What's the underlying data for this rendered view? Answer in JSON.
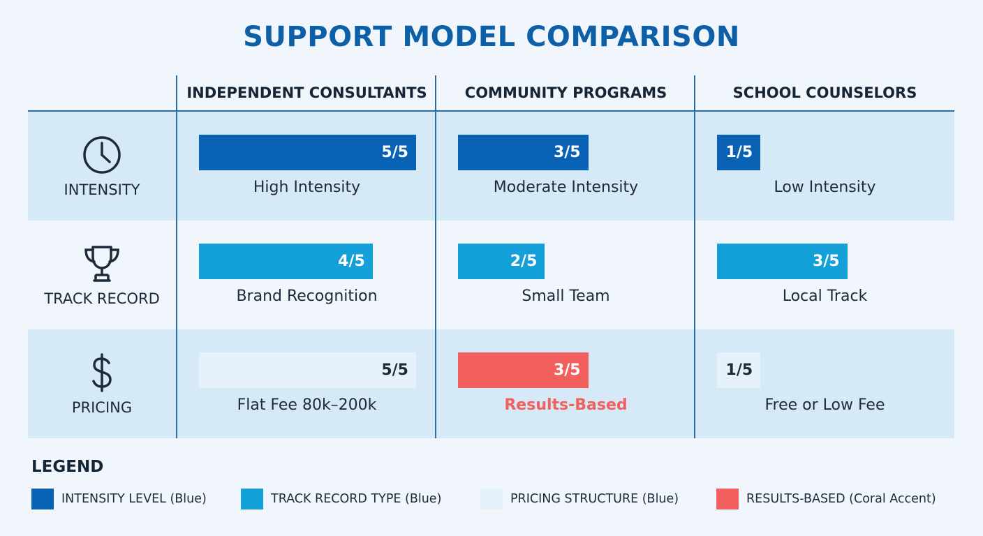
{
  "title": "SUPPORT MODEL COMPARISON",
  "columns": [
    "INDEPENDENT CONSULTANTS",
    "COMMUNITY PROGRAMS",
    "SCHOOL COUNSELORS"
  ],
  "rows": [
    {
      "label": "INTENSITY",
      "icon": "clock-icon",
      "cells": [
        {
          "score": "5/5",
          "label": "High Intensity"
        },
        {
          "score": "3/5",
          "label": "Moderate Intensity"
        },
        {
          "score": "1/5",
          "label": "Low Intensity"
        }
      ]
    },
    {
      "label": "TRACK RECORD",
      "icon": "trophy-icon",
      "cells": [
        {
          "score": "4/5",
          "label": "Brand Recognition"
        },
        {
          "score": "2/5",
          "label": "Small Team"
        },
        {
          "score": "3/5",
          "label": "Local Track"
        }
      ]
    },
    {
      "label": "PRICING",
      "icon": "dollar-icon",
      "cells": [
        {
          "score": "5/5",
          "label": "Flat Fee 80k–200k"
        },
        {
          "score": "3/5",
          "label": "Results-Based"
        },
        {
          "score": "1/5",
          "label": "Free or Low Fee"
        }
      ]
    }
  ],
  "legend": {
    "title": "LEGEND",
    "items": [
      {
        "label": "INTENSITY LEVEL (Blue)",
        "color": "#0a62b4"
      },
      {
        "label": "TRACK RECORD TYPE (Blue)",
        "color": "#139fd8"
      },
      {
        "label": "PRICING STRUCTURE (Blue)",
        "color": "#e6f2fb"
      },
      {
        "label": "RESULTS-BASED (Coral Accent)",
        "color": "#f2605e"
      }
    ]
  },
  "chart_data": {
    "type": "bar",
    "title": "SUPPORT MODEL COMPARISON",
    "categories": [
      "INDEPENDENT CONSULTANTS",
      "COMMUNITY PROGRAMS",
      "SCHOOL COUNSELORS"
    ],
    "ylim": [
      0,
      5
    ],
    "series": [
      {
        "name": "INTENSITY",
        "values": [
          5,
          3,
          1
        ],
        "color": "#0a62b4"
      },
      {
        "name": "TRACK RECORD",
        "values": [
          4,
          2,
          3
        ],
        "color": "#139fd8"
      },
      {
        "name": "PRICING",
        "values": [
          5,
          3,
          1
        ],
        "color": "#e6f2fb",
        "accent": {
          "index": 1,
          "color": "#f2605e"
        }
      }
    ],
    "grid": false,
    "legend_position": "bottom"
  }
}
